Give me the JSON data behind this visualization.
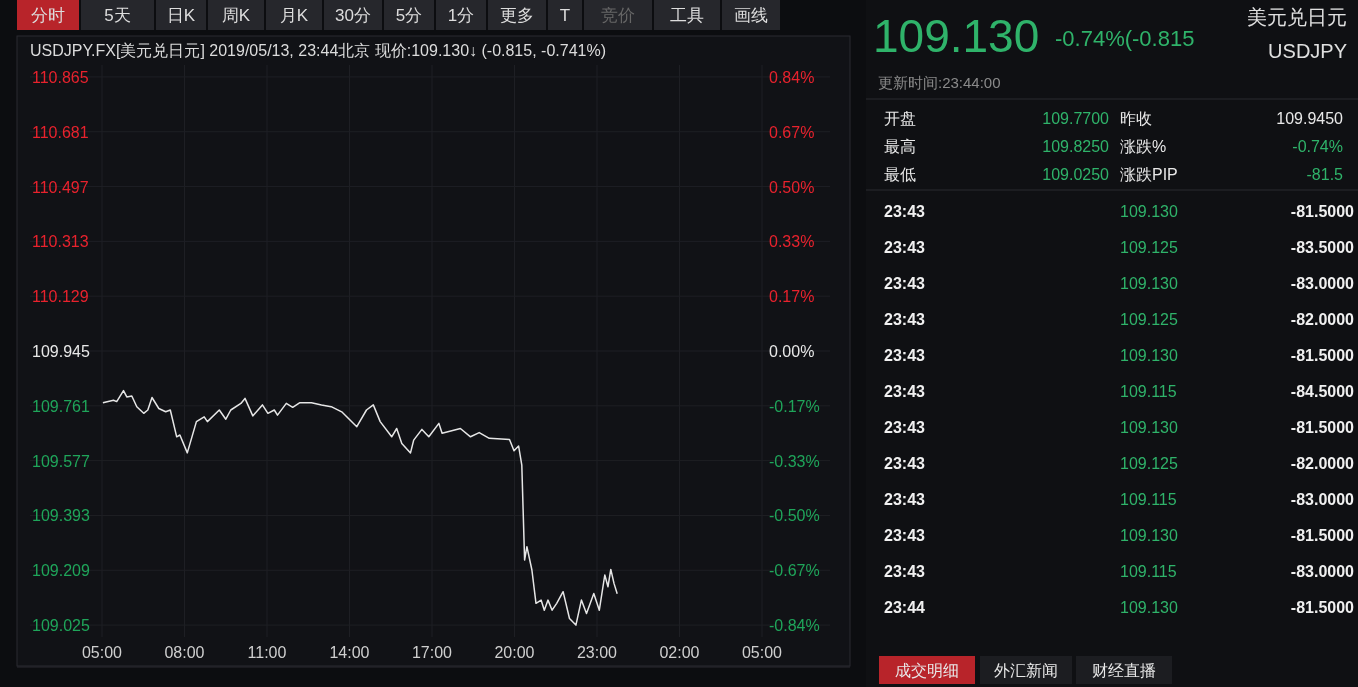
{
  "chart_data": [
    {
      "type": "line",
      "title": "USDJPY.FX[美元兑日元]  2019/05/13, 23:44北京 现价:109.130↓  (-0.815, -0.741%)",
      "annotations": [
        "分时",
        "5天",
        "日K",
        "周K",
        "月K",
        "30分",
        "5分",
        "1分",
        "更多",
        "T",
        "竞价",
        "工具",
        "画线"
      ],
      "series": [
        {
          "color": "#e6e6e6",
          "x": [
            "2019-05-13T05:02",
            "2019-05-13T05:25",
            "2019-05-13T05:32",
            "2019-05-13T05:47",
            "2019-05-13T05:54",
            "2019-05-13T06:05",
            "2019-05-13T06:16",
            "2019-05-13T06:31",
            "2019-05-13T06:40",
            "2019-05-13T06:49",
            "2019-05-13T07:04",
            "2019-05-13T07:19",
            "2019-05-13T07:29",
            "2019-05-13T07:43",
            "2019-05-13T07:50",
            "2019-05-13T08:06",
            "2019-05-13T08:26",
            "2019-05-13T08:43",
            "2019-05-13T08:50",
            "2019-05-13T09:16",
            "2019-05-13T09:30",
            "2019-05-13T09:41",
            "2019-05-13T10:03",
            "2019-05-13T10:12",
            "2019-05-13T10:29",
            "2019-05-13T10:50",
            "2019-05-13T11:02",
            "2019-05-13T11:16",
            "2019-05-13T11:23",
            "2019-05-13T11:42",
            "2019-05-13T11:56",
            "2019-05-13T12:11",
            "2019-05-13T12:37",
            "2019-05-13T12:59",
            "2019-05-13T13:20",
            "2019-05-13T13:43",
            "2019-05-13T14:16",
            "2019-05-13T14:37",
            "2019-05-13T14:52",
            "2019-05-13T15:07",
            "2019-05-13T15:32",
            "2019-05-13T15:43",
            "2019-05-13T15:54",
            "2019-05-13T16:13",
            "2019-05-13T16:20",
            "2019-05-13T16:38",
            "2019-05-13T16:53",
            "2019-05-13T17:15",
            "2019-05-13T17:22",
            "2019-05-13T18:02",
            "2019-05-13T18:24",
            "2019-05-13T18:43",
            "2019-05-13T19:05",
            "2019-05-13T19:49",
            "2019-05-13T19:59",
            "2019-05-13T20:09",
            "2019-05-13T20:16",
            "2019-05-13T20:22",
            "2019-05-13T20:27",
            "2019-05-13T20:38",
            "2019-05-13T20:47",
            "2019-05-13T20:58",
            "2019-05-13T21:05",
            "2019-05-13T21:13",
            "2019-05-13T21:22",
            "2019-05-13T21:32",
            "2019-05-13T21:46",
            "2019-05-13T22:00",
            "2019-05-13T22:14",
            "2019-05-13T22:26",
            "2019-05-13T22:37",
            "2019-05-13T22:53",
            "2019-05-13T23:05",
            "2019-05-13T23:17",
            "2019-05-13T23:24",
            "2019-05-13T23:30",
            "2019-05-13T23:37",
            "2019-05-13T23:44"
          ],
          "values": [
            109.771,
            109.78,
            109.775,
            109.812,
            109.791,
            109.794,
            109.758,
            109.736,
            109.747,
            109.789,
            109.752,
            109.741,
            109.747,
            109.657,
            109.663,
            109.603,
            109.708,
            109.724,
            109.708,
            109.747,
            109.716,
            109.747,
            109.769,
            109.786,
            109.727,
            109.764,
            109.736,
            109.747,
            109.73,
            109.769,
            109.756,
            109.771,
            109.771,
            109.764,
            109.758,
            109.741,
            109.691,
            109.747,
            109.764,
            109.708,
            109.657,
            109.685,
            109.635,
            109.603,
            109.646,
            109.682,
            109.657,
            109.702,
            109.669,
            109.685,
            109.657,
            109.671,
            109.652,
            109.648,
            109.61,
            109.626,
            109.562,
            109.243,
            109.288,
            109.21,
            109.098,
            109.109,
            109.075,
            109.109,
            109.075,
            109.098,
            109.137,
            109.047,
            109.025,
            109.109,
            109.064,
            109.131,
            109.075,
            109.193,
            109.154,
            109.212,
            109.165,
            109.13
          ]
        }
      ],
      "xlim": [
        "2019-05-13T05:00",
        "2019-05-14T05:00"
      ],
      "xticks": [
        {
          "value": "2019-05-13T05:00",
          "label": "05:00"
        },
        {
          "value": "2019-05-13T08:00",
          "label": "08:00"
        },
        {
          "value": "2019-05-13T11:00",
          "label": "11:00"
        },
        {
          "value": "2019-05-13T14:00",
          "label": "14:00"
        },
        {
          "value": "2019-05-13T17:00",
          "label": "17:00"
        },
        {
          "value": "2019-05-13T20:00",
          "label": "20:00"
        },
        {
          "value": "2019-05-13T23:00",
          "label": "23:00"
        },
        {
          "value": "2019-05-14T02:00",
          "label": "02:00"
        },
        {
          "value": "2019-05-14T05:00",
          "label": "05:00"
        }
      ],
      "ylim": [
        108.985,
        110.905
      ],
      "yticks": [
        110.865,
        110.681,
        110.497,
        110.313,
        110.129,
        109.945,
        109.761,
        109.577,
        109.393,
        109.209,
        109.025
      ],
      "y2lim": [
        -0.873,
        0.873
      ],
      "y2ticks": [
        {
          "value": 0.8368,
          "label": "0.84%"
        },
        {
          "value": 0.6695,
          "label": "0.67%"
        },
        {
          "value": 0.5021,
          "label": "0.50%"
        },
        {
          "value": 0.3347,
          "label": "0.33%"
        },
        {
          "value": 0.1674,
          "label": "0.17%"
        },
        {
          "value": 0,
          "label": "0.00%"
        },
        {
          "value": -0.1674,
          "label": "-0.17%"
        },
        {
          "value": -0.3347,
          "label": "-0.33%"
        },
        {
          "value": -0.5021,
          "label": "-0.50%"
        },
        {
          "value": -0.6695,
          "label": "-0.67%"
        },
        {
          "value": -0.8368,
          "label": "-0.84%"
        }
      ],
      "grid": true
    },
    {
      "type": "other",
      "annotations": [
        "美元兑日元",
        "USDJPY",
        "109.130",
        "-0.74%(-0.815",
        "更新时间:23:44:00",
        "开盘",
        "109.7700",
        "昨收",
        "109.9450",
        "最高",
        "109.8250",
        "涨跌%",
        "-0.74%",
        "最低",
        "109.0250",
        "涨跌PIP",
        "-81.5",
        "23:43",
        "109.130",
        "-81.5000",
        "23:43",
        "109.125",
        "-83.5000",
        "23:43",
        "109.130",
        "-83.0000",
        "23:43",
        "109.125",
        "-82.0000",
        "23:43",
        "109.130",
        "-81.5000",
        "23:43",
        "109.115",
        "-84.5000",
        "23:43",
        "109.130",
        "-81.5000",
        "23:43",
        "109.125",
        "-82.0000",
        "23:43",
        "109.115",
        "-83.0000",
        "23:43",
        "109.130",
        "-81.5000",
        "23:43",
        "109.115",
        "-83.0000",
        "23:44",
        "109.130",
        "-81.5000",
        "成交明细",
        "外汇新闻",
        "财经直播"
      ]
    }
  ]
}
